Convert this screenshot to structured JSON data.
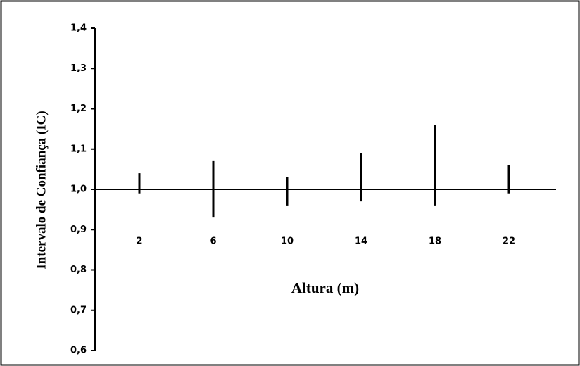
{
  "chart_data": {
    "type": "interval",
    "y_label": "Intervalo de Confiança (IC)",
    "x_label": "Altura (m)",
    "categories": [
      "2",
      "6",
      "10",
      "14",
      "18",
      "22"
    ],
    "lower": [
      0.99,
      0.93,
      0.96,
      0.97,
      0.96,
      0.99
    ],
    "upper": [
      1.04,
      1.07,
      1.03,
      1.09,
      1.16,
      1.06
    ],
    "color": "#000000",
    "x_axis_crossing": 1,
    "ylim": [
      0.6,
      1.4
    ],
    "yticks": [
      {
        "value": 0.6,
        "label": "0,6"
      },
      {
        "value": 0.7,
        "label": "0,7"
      },
      {
        "value": 0.8,
        "label": "0,8"
      },
      {
        "value": 0.9,
        "label": "0,9"
      },
      {
        "value": 1.0,
        "label": "1,0"
      },
      {
        "value": 1.1,
        "label": "1,1"
      },
      {
        "value": 1.2,
        "label": "1,2"
      },
      {
        "value": 1.3,
        "label": "1,3"
      },
      {
        "value": 1.4,
        "label": "1,4"
      }
    ]
  }
}
